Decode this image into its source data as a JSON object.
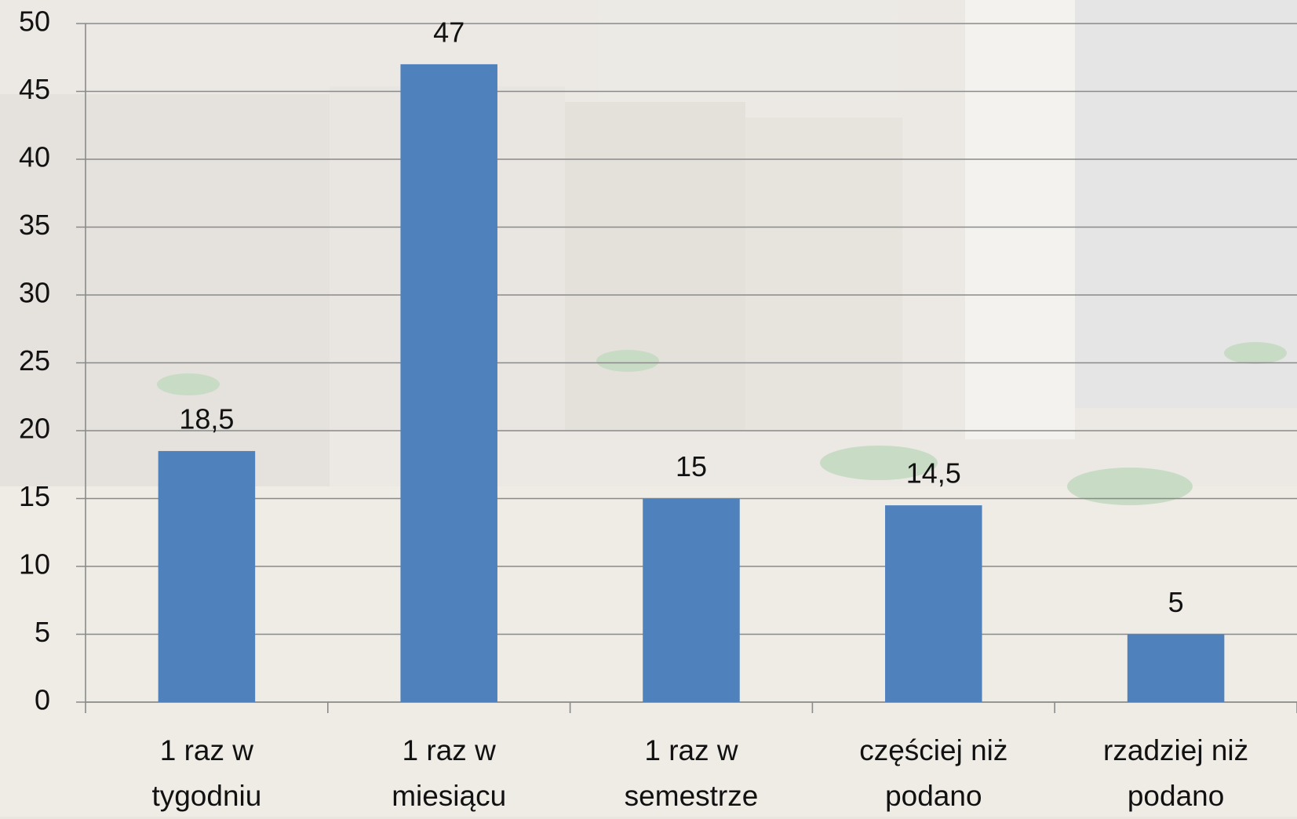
{
  "chart_data": {
    "type": "bar",
    "categories": [
      "1 raz w tygodniu",
      "1 raz w miesiącu",
      "1 raz w semestrze",
      "częściej niż podano",
      "rzadziej niż podano"
    ],
    "values": [
      18.5,
      47,
      15,
      14.5,
      5
    ],
    "value_labels": [
      "18,5",
      "47",
      "15",
      "14,5",
      "5"
    ],
    "color": "#4f81bd",
    "ylim": [
      0,
      50
    ],
    "yticks": [
      0,
      5,
      10,
      15,
      20,
      25,
      30,
      35,
      40,
      45,
      50
    ],
    "grid": true
  }
}
